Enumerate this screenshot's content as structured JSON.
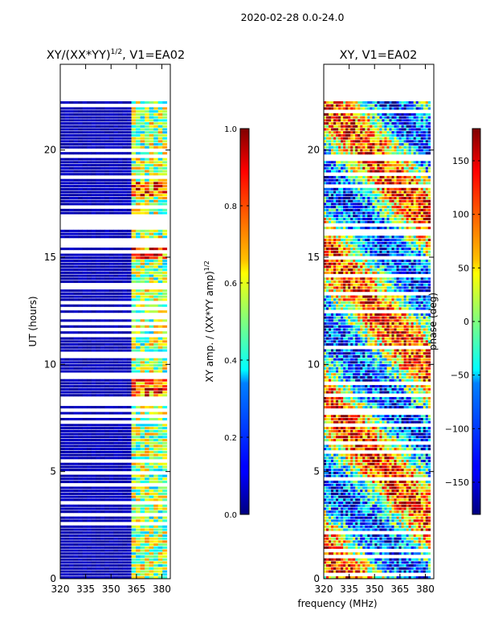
{
  "figure": {
    "suptitle": "2020-02-28 0.0-24.0",
    "shared_xlabel": "frequency (MHz)"
  },
  "chart_data": [
    {
      "type": "heatmap",
      "title_main": "XY/(XX*YY)",
      "title_sup": "1/2",
      "title_tail": ", V1=EA02",
      "xlabel": "",
      "ylabel": "UT (hours)",
      "xlim": [
        320,
        385
      ],
      "ylim": [
        0,
        24
      ],
      "xticks": [
        320,
        335,
        350,
        365,
        380
      ],
      "yticks": [
        0,
        5,
        10,
        15,
        20
      ],
      "data_extent_hours": [
        0,
        22.3
      ],
      "colorbar": {
        "label_main": "XY amp. / (XX*YY amp)",
        "label_sup": "1/2",
        "range": [
          0.0,
          1.0
        ],
        "ticks": [
          "0.0",
          "0.2",
          "0.4",
          "0.6",
          "0.8",
          "1.0"
        ],
        "colormap": "jet"
      },
      "notes": "Low amplitude (~0.05) across 320-360 MHz; higher amplitude (0.3-0.9) in 360-383 MHz band; many horizontal gaps (flagged rows)."
    },
    {
      "type": "heatmap",
      "title": "XY, V1=EA02",
      "xlabel": "",
      "ylabel": "",
      "xlim": [
        320,
        385
      ],
      "ylim": [
        0,
        24
      ],
      "xticks": [
        320,
        335,
        350,
        365,
        380
      ],
      "yticks": [
        0,
        5,
        10,
        15,
        20
      ],
      "data_extent_hours": [
        0,
        22.3
      ],
      "colorbar": {
        "label": "phase (deg)",
        "range": [
          -180,
          180
        ],
        "ticks": [
          "150",
          "100",
          "50",
          "0",
          "−50",
          "−100",
          "−150"
        ],
        "colormap": "jet"
      },
      "notes": "Phase varies widely (-180 to 180 deg) across all frequencies and times; many horizontal gaps."
    }
  ],
  "colors": {
    "jet_low": "#00007f",
    "jet_mid": "#7fff7f",
    "jet_high": "#7f0000",
    "gap": "#ffffff"
  }
}
